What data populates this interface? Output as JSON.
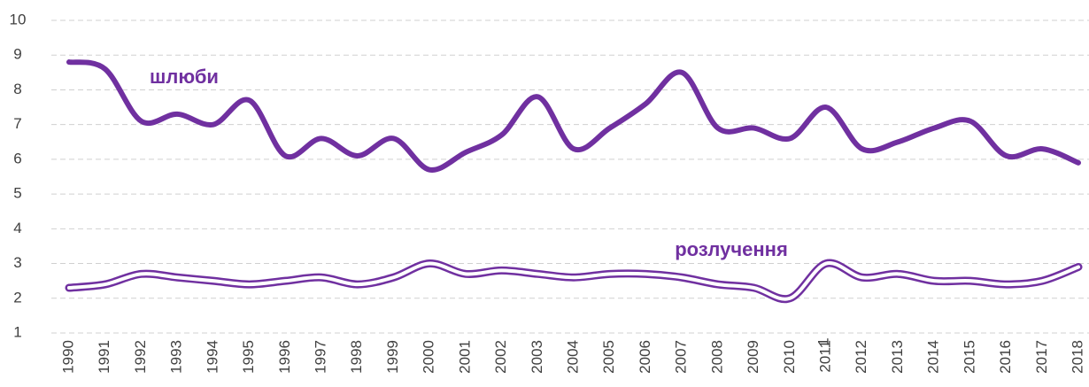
{
  "chart_data": {
    "type": "line",
    "categories": [
      "1990",
      "1991",
      "1992",
      "1993",
      "1994",
      "1995",
      "1996",
      "1997",
      "1998",
      "1999",
      "2000",
      "2001",
      "2002",
      "2003",
      "2004",
      "2005",
      "2006",
      "2007",
      "2008",
      "2009",
      "2010",
      "2011",
      "2012",
      "2013",
      "2014",
      "2015",
      "2016",
      "2017",
      "2018"
    ],
    "series": [
      {
        "name": "шлюби",
        "color": "#7030a0",
        "style": "solid",
        "values": [
          8.8,
          8.6,
          7.1,
          7.3,
          7.0,
          7.7,
          6.1,
          6.6,
          6.1,
          6.6,
          5.7,
          6.2,
          6.7,
          7.8,
          6.3,
          6.9,
          7.6,
          8.5,
          6.9,
          6.9,
          6.6,
          7.5,
          6.3,
          6.5,
          6.9,
          7.1,
          6.1,
          6.3,
          5.9
        ]
      },
      {
        "name": "розлучення",
        "color": "#7030a0",
        "style": "double",
        "values": [
          2.3,
          2.4,
          2.7,
          2.6,
          2.5,
          2.4,
          2.5,
          2.6,
          2.4,
          2.6,
          3.0,
          2.7,
          2.8,
          2.7,
          2.6,
          2.7,
          2.7,
          2.6,
          2.4,
          2.3,
          2.0,
          3.0,
          2.6,
          2.7,
          2.5,
          2.5,
          2.4,
          2.5,
          2.9
        ]
      }
    ],
    "annotations": [
      "1"
    ],
    "ylim": [
      1,
      10
    ],
    "yticks": [
      1,
      2,
      3,
      4,
      5,
      6,
      7,
      8,
      9,
      10
    ],
    "grid": true
  }
}
